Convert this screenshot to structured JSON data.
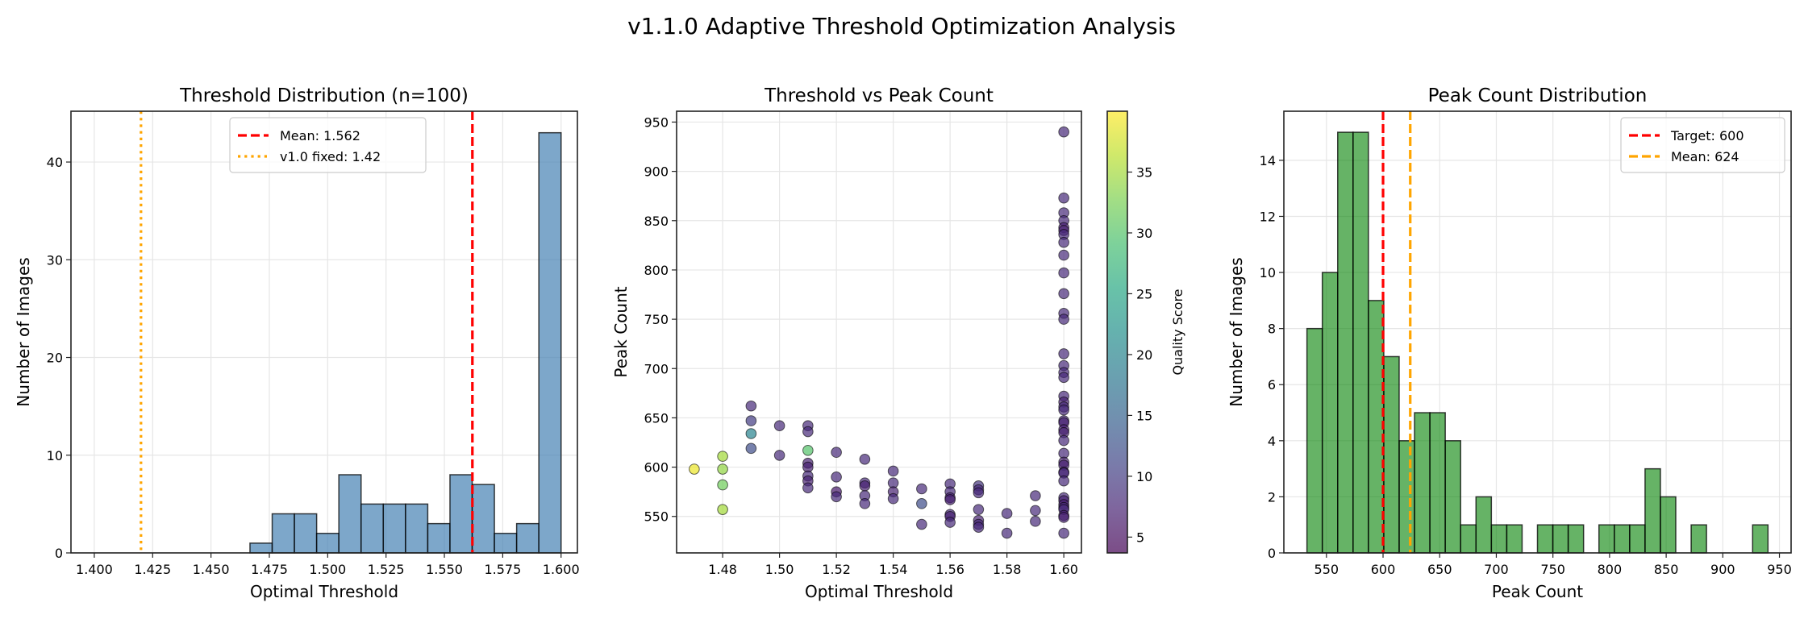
{
  "figure": {
    "suptitle": "v1.1.0 Adaptive Threshold Optimization Analysis"
  },
  "chart_data": [
    {
      "type": "bar",
      "subtype": "histogram",
      "title": "Threshold Distribution (n=100)",
      "xlabel": "Optimal Threshold",
      "ylabel": "Number of Images",
      "bin_start": 1.4667,
      "bin_end": 1.6,
      "counts": [
        1,
        4,
        4,
        2,
        8,
        5,
        5,
        5,
        3,
        8,
        7,
        2,
        3,
        43
      ],
      "xlim": [
        1.39,
        1.607
      ],
      "ylim": [
        0,
        45.2
      ],
      "xticks": [
        "1.400",
        "1.425",
        "1.450",
        "1.475",
        "1.500",
        "1.525",
        "1.550",
        "1.575",
        "1.600"
      ],
      "xtick_values": [
        1.4,
        1.425,
        1.45,
        1.475,
        1.5,
        1.525,
        1.55,
        1.575,
        1.6
      ],
      "yticks": [
        0,
        10,
        20,
        30,
        40
      ],
      "grid": true,
      "bar_color": "#4682b4",
      "reference_lines": [
        {
          "label": "Mean: 1.562",
          "value": 1.562,
          "color": "#ff0000",
          "style": "dashed"
        },
        {
          "label": "v1.0 fixed: 1.42",
          "value": 1.42,
          "color": "#ffa500",
          "style": "dotted"
        }
      ],
      "legend": "top-right"
    },
    {
      "type": "scatter",
      "title": "Threshold vs Peak Count",
      "xlabel": "Optimal Threshold",
      "ylabel": "Peak Count",
      "colorbar_label": "Quality Score",
      "colormap": "viridis",
      "color_range": [
        3.7,
        40
      ],
      "colorbar_ticks": [
        5,
        10,
        15,
        20,
        25,
        30,
        35
      ],
      "xlim": [
        1.4638,
        1.6062
      ],
      "ylim": [
        513,
        961
      ],
      "xticks": [
        "1.48",
        "1.50",
        "1.52",
        "1.54",
        "1.56",
        "1.58",
        "1.60"
      ],
      "xtick_values": [
        1.48,
        1.5,
        1.52,
        1.54,
        1.56,
        1.58,
        1.6
      ],
      "yticks": [
        550,
        600,
        650,
        700,
        750,
        800,
        850,
        900,
        950
      ],
      "grid": true,
      "points": [
        [
          1.47,
          598,
          39
        ],
        [
          1.48,
          611,
          35
        ],
        [
          1.48,
          598,
          34
        ],
        [
          1.48,
          582,
          32
        ],
        [
          1.48,
          557,
          35
        ],
        [
          1.49,
          662,
          8
        ],
        [
          1.49,
          647,
          10
        ],
        [
          1.49,
          634,
          20
        ],
        [
          1.49,
          619,
          12
        ],
        [
          1.5,
          642,
          8
        ],
        [
          1.5,
          612,
          8
        ],
        [
          1.51,
          642,
          8
        ],
        [
          1.51,
          636,
          8
        ],
        [
          1.51,
          617,
          30
        ],
        [
          1.51,
          604,
          7
        ],
        [
          1.51,
          600,
          7
        ],
        [
          1.51,
          591,
          8
        ],
        [
          1.51,
          586,
          7
        ],
        [
          1.51,
          579,
          8
        ],
        [
          1.52,
          615,
          8
        ],
        [
          1.52,
          590,
          8
        ],
        [
          1.52,
          575,
          6
        ],
        [
          1.52,
          570,
          8
        ],
        [
          1.53,
          608,
          8
        ],
        [
          1.53,
          584,
          8
        ],
        [
          1.53,
          581,
          7
        ],
        [
          1.53,
          571,
          8
        ],
        [
          1.53,
          563,
          8
        ],
        [
          1.54,
          596,
          8
        ],
        [
          1.54,
          584,
          8
        ],
        [
          1.54,
          575,
          7
        ],
        [
          1.54,
          568,
          8
        ],
        [
          1.55,
          578,
          8
        ],
        [
          1.55,
          563,
          12
        ],
        [
          1.55,
          542,
          8
        ],
        [
          1.56,
          583,
          8
        ],
        [
          1.56,
          575,
          8
        ],
        [
          1.56,
          569,
          7
        ],
        [
          1.56,
          567,
          7
        ],
        [
          1.56,
          552,
          8
        ],
        [
          1.56,
          550,
          7
        ],
        [
          1.56,
          544,
          8
        ],
        [
          1.57,
          581,
          9
        ],
        [
          1.57,
          577,
          8
        ],
        [
          1.57,
          574,
          8
        ],
        [
          1.57,
          557,
          8
        ],
        [
          1.57,
          546,
          7
        ],
        [
          1.57,
          542,
          8
        ],
        [
          1.57,
          539,
          8
        ],
        [
          1.58,
          553,
          8
        ],
        [
          1.58,
          533,
          8
        ],
        [
          1.59,
          571,
          8
        ],
        [
          1.59,
          556,
          8
        ],
        [
          1.59,
          545,
          8
        ],
        [
          1.6,
          940,
          8
        ],
        [
          1.6,
          873,
          8
        ],
        [
          1.6,
          858,
          8
        ],
        [
          1.6,
          850,
          8
        ],
        [
          1.6,
          843,
          7
        ],
        [
          1.6,
          840,
          7
        ],
        [
          1.6,
          836,
          8
        ],
        [
          1.6,
          828,
          8
        ],
        [
          1.6,
          815,
          8
        ],
        [
          1.6,
          797,
          8
        ],
        [
          1.6,
          776,
          8
        ],
        [
          1.6,
          756,
          8
        ],
        [
          1.6,
          750,
          8
        ],
        [
          1.6,
          715,
          8
        ],
        [
          1.6,
          703,
          8
        ],
        [
          1.6,
          696,
          8
        ],
        [
          1.6,
          691,
          8
        ],
        [
          1.6,
          672,
          8
        ],
        [
          1.6,
          666,
          7
        ],
        [
          1.6,
          661,
          8
        ],
        [
          1.6,
          658,
          8
        ],
        [
          1.6,
          647,
          8
        ],
        [
          1.6,
          645,
          7
        ],
        [
          1.6,
          638,
          7
        ],
        [
          1.6,
          635,
          7
        ],
        [
          1.6,
          627,
          8
        ],
        [
          1.6,
          614,
          8
        ],
        [
          1.6,
          605,
          7
        ],
        [
          1.6,
          602,
          7
        ],
        [
          1.6,
          595,
          7
        ],
        [
          1.6,
          594,
          8
        ],
        [
          1.6,
          586,
          8
        ],
        [
          1.6,
          569,
          8
        ],
        [
          1.6,
          566,
          7
        ],
        [
          1.6,
          562,
          7
        ],
        [
          1.6,
          559,
          8
        ],
        [
          1.6,
          557,
          8
        ],
        [
          1.6,
          551,
          7
        ],
        [
          1.6,
          549,
          7
        ],
        [
          1.6,
          533,
          8
        ]
      ]
    },
    {
      "type": "bar",
      "subtype": "histogram",
      "title": "Peak Count Distribution",
      "xlabel": "Peak Count",
      "ylabel": "Number of Images",
      "bin_start": 532.8,
      "bin_end": 939.9,
      "counts": [
        8,
        10,
        15,
        15,
        9,
        7,
        4,
        5,
        5,
        4,
        1,
        2,
        1,
        1,
        0,
        1,
        1,
        1,
        0,
        1,
        1,
        1,
        3,
        2,
        0,
        1,
        0,
        0,
        0,
        1
      ],
      "xlim": [
        512.4,
        960.3
      ],
      "ylim": [
        0,
        15.75
      ],
      "xticks": [
        "550",
        "600",
        "650",
        "700",
        "750",
        "800",
        "850",
        "900",
        "950"
      ],
      "xtick_values": [
        550,
        600,
        650,
        700,
        750,
        800,
        850,
        900,
        950
      ],
      "yticks": [
        0,
        2,
        4,
        6,
        8,
        10,
        12,
        14
      ],
      "grid": true,
      "bar_color": "#008000",
      "reference_lines": [
        {
          "label": "Target: 600",
          "value": 600,
          "color": "#ff0000",
          "style": "dashed"
        },
        {
          "label": "Mean: 624",
          "value": 624,
          "color": "#ffa500",
          "style": "dashed"
        }
      ],
      "legend": "top-right"
    }
  ]
}
